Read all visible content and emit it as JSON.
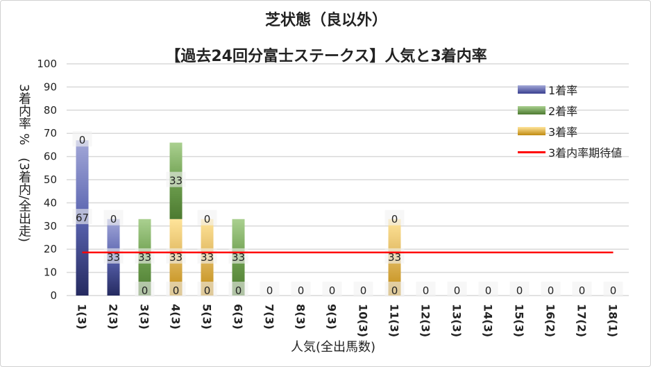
{
  "chart_data": {
    "type": "bar",
    "title": "芝状態（良以外）",
    "subtitle": "【過去24回分富士ステークス】人気と3着内率",
    "xlabel": "人気(全出馬数)",
    "ylabel": "3着内率 %　(3着内/全出走)",
    "ylim": [
      0,
      100
    ],
    "yticks": [
      0,
      10,
      20,
      30,
      40,
      50,
      60,
      70,
      80,
      90,
      100
    ],
    "grid": true,
    "legend_position": "right",
    "categories": [
      "1(3)",
      "2(3)",
      "3(3)",
      "4(3)",
      "5(3)",
      "6(3)",
      "7(3)",
      "8(3)",
      "9(3)",
      "10(3)",
      "11(3)",
      "12(3)",
      "13(3)",
      "14(3)",
      "15(3)",
      "16(2)",
      "17(2)",
      "18(1)"
    ],
    "series": [
      {
        "name": "1着率",
        "color": "#5a64b0",
        "values": [
          67,
          33,
          0,
          0,
          0,
          0,
          0,
          0,
          0,
          0,
          0,
          0,
          0,
          0,
          0,
          0,
          0,
          0
        ]
      },
      {
        "name": "2着率",
        "color": "#6fa050",
        "values": [
          0,
          0,
          33,
          33,
          0,
          33,
          0,
          0,
          0,
          0,
          0,
          0,
          0,
          0,
          0,
          0,
          0,
          0
        ]
      },
      {
        "name": "3着率",
        "color": "#e0b040",
        "values": [
          0,
          0,
          0,
          33,
          33,
          0,
          0,
          0,
          0,
          0,
          33,
          0,
          0,
          0,
          0,
          0,
          0,
          0
        ]
      }
    ],
    "expected_line": {
      "name": "3着内率期待値",
      "color": "#ff0000",
      "value": 18.6
    }
  }
}
